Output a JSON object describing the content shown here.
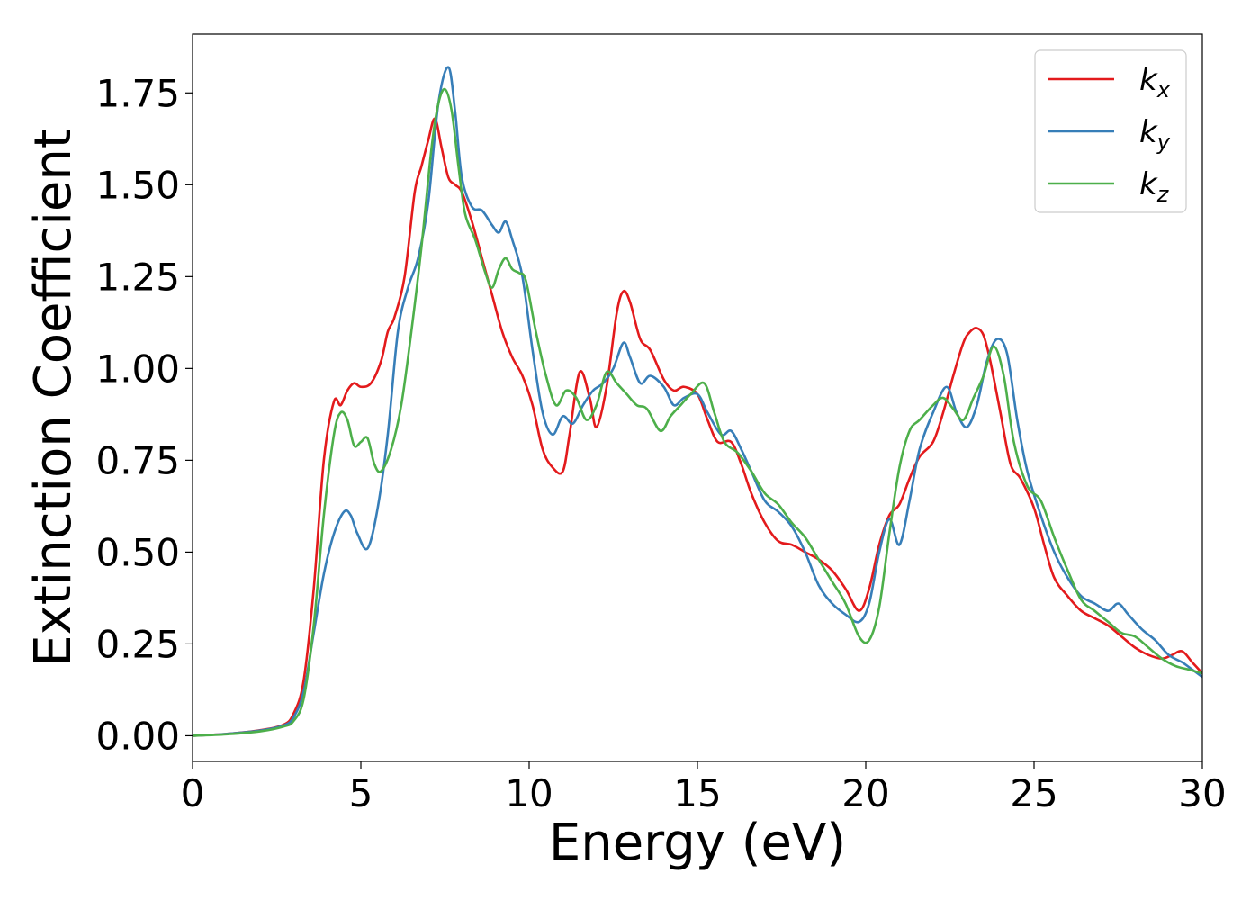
{
  "chart_data": {
    "type": "line",
    "title": "",
    "xlabel": "Energy (eV)",
    "ylabel": "Extinction Coefficient",
    "xlim": [
      0,
      30
    ],
    "ylim": [
      -0.07,
      1.91
    ],
    "xticks": [
      0,
      5,
      10,
      15,
      20,
      25,
      30
    ],
    "xtick_labels": [
      "0",
      "5",
      "10",
      "15",
      "20",
      "25",
      "30"
    ],
    "yticks": [
      0.0,
      0.25,
      0.5,
      0.75,
      1.0,
      1.25,
      1.5,
      1.75
    ],
    "ytick_labels": [
      "0.00",
      "0.25",
      "0.50",
      "0.75",
      "1.00",
      "1.25",
      "1.50",
      "1.75"
    ],
    "grid": false,
    "legend_position": "top-right",
    "series": [
      {
        "name": "k",
        "subscript": "x",
        "color": "#e31a1c",
        "x": [
          0,
          1,
          2,
          2.7,
          3.0,
          3.3,
          3.6,
          3.9,
          4.2,
          4.4,
          4.6,
          4.8,
          5.0,
          5.3,
          5.6,
          5.8,
          6.0,
          6.3,
          6.6,
          6.8,
          7.0,
          7.2,
          7.4,
          7.6,
          7.8,
          8.0,
          8.3,
          8.6,
          8.9,
          9.2,
          9.5,
          9.8,
          10.1,
          10.4,
          10.7,
          11.0,
          11.2,
          11.5,
          11.8,
          12.0,
          12.3,
          12.6,
          12.8,
          13.0,
          13.3,
          13.6,
          14.0,
          14.3,
          14.6,
          15.0,
          15.3,
          15.6,
          16.0,
          16.3,
          16.6,
          17.0,
          17.4,
          17.8,
          18.2,
          18.6,
          19.0,
          19.4,
          19.8,
          20.1,
          20.4,
          20.7,
          21.0,
          21.3,
          21.6,
          22.0,
          22.3,
          22.6,
          22.9,
          23.1,
          23.3,
          23.5,
          23.7,
          24.0,
          24.3,
          24.6,
          25.0,
          25.3,
          25.6,
          26.0,
          26.4,
          26.8,
          27.2,
          27.6,
          28.0,
          28.4,
          28.8,
          29.1,
          29.4,
          29.7,
          30.0
        ],
        "values": [
          0.0,
          0.005,
          0.015,
          0.03,
          0.06,
          0.15,
          0.4,
          0.75,
          0.91,
          0.9,
          0.94,
          0.96,
          0.95,
          0.96,
          1.02,
          1.1,
          1.14,
          1.25,
          1.48,
          1.55,
          1.62,
          1.68,
          1.6,
          1.52,
          1.5,
          1.48,
          1.4,
          1.3,
          1.2,
          1.1,
          1.03,
          0.98,
          0.9,
          0.78,
          0.73,
          0.72,
          0.82,
          0.99,
          0.92,
          0.84,
          0.95,
          1.15,
          1.21,
          1.18,
          1.08,
          1.05,
          0.97,
          0.94,
          0.95,
          0.93,
          0.86,
          0.8,
          0.8,
          0.74,
          0.66,
          0.58,
          0.53,
          0.52,
          0.5,
          0.48,
          0.45,
          0.4,
          0.34,
          0.4,
          0.52,
          0.6,
          0.63,
          0.7,
          0.76,
          0.8,
          0.88,
          0.98,
          1.07,
          1.1,
          1.11,
          1.09,
          1.02,
          0.88,
          0.74,
          0.7,
          0.62,
          0.52,
          0.43,
          0.38,
          0.34,
          0.32,
          0.3,
          0.27,
          0.24,
          0.22,
          0.21,
          0.22,
          0.23,
          0.2,
          0.17
        ]
      },
      {
        "name": "k",
        "subscript": "y",
        "color": "#377eb8",
        "x": [
          0,
          1,
          2,
          2.7,
          3.0,
          3.3,
          3.6,
          3.9,
          4.2,
          4.5,
          4.7,
          4.9,
          5.2,
          5.5,
          5.8,
          6.1,
          6.4,
          6.7,
          7.0,
          7.3,
          7.6,
          7.8,
          8.0,
          8.3,
          8.6,
          8.9,
          9.1,
          9.3,
          9.5,
          9.8,
          10.1,
          10.4,
          10.7,
          11.0,
          11.3,
          11.6,
          11.9,
          12.2,
          12.5,
          12.8,
          13.0,
          13.3,
          13.6,
          14.0,
          14.3,
          14.6,
          15.0,
          15.3,
          15.7,
          16.0,
          16.3,
          16.6,
          17.0,
          17.4,
          17.8,
          18.2,
          18.6,
          19.0,
          19.4,
          19.8,
          20.1,
          20.4,
          20.7,
          21.0,
          21.3,
          21.6,
          22.0,
          22.4,
          22.7,
          23.0,
          23.3,
          23.6,
          23.9,
          24.2,
          24.5,
          24.8,
          25.2,
          25.6,
          26.0,
          26.4,
          26.8,
          27.2,
          27.5,
          27.8,
          28.2,
          28.6,
          29.0,
          29.4,
          29.7,
          30.0
        ],
        "values": [
          0.0,
          0.005,
          0.014,
          0.028,
          0.05,
          0.12,
          0.28,
          0.44,
          0.55,
          0.61,
          0.6,
          0.55,
          0.51,
          0.62,
          0.82,
          1.1,
          1.22,
          1.3,
          1.45,
          1.72,
          1.82,
          1.7,
          1.52,
          1.44,
          1.43,
          1.39,
          1.37,
          1.4,
          1.35,
          1.25,
          1.05,
          0.88,
          0.82,
          0.87,
          0.85,
          0.9,
          0.94,
          0.96,
          1.0,
          1.07,
          1.03,
          0.96,
          0.98,
          0.95,
          0.9,
          0.92,
          0.93,
          0.88,
          0.82,
          0.83,
          0.78,
          0.72,
          0.64,
          0.61,
          0.57,
          0.5,
          0.41,
          0.36,
          0.33,
          0.31,
          0.36,
          0.5,
          0.59,
          0.52,
          0.64,
          0.78,
          0.88,
          0.95,
          0.88,
          0.84,
          0.9,
          1.02,
          1.08,
          1.04,
          0.86,
          0.72,
          0.6,
          0.5,
          0.43,
          0.38,
          0.36,
          0.34,
          0.36,
          0.33,
          0.29,
          0.26,
          0.22,
          0.2,
          0.18,
          0.16
        ]
      },
      {
        "name": "k",
        "subscript": "z",
        "color": "#4daf4a",
        "x": [
          0,
          1,
          2,
          2.7,
          3.0,
          3.3,
          3.6,
          3.9,
          4.2,
          4.4,
          4.6,
          4.8,
          5.0,
          5.2,
          5.4,
          5.6,
          5.9,
          6.2,
          6.5,
          6.8,
          7.1,
          7.3,
          7.5,
          7.7,
          7.9,
          8.1,
          8.4,
          8.7,
          8.9,
          9.1,
          9.3,
          9.5,
          9.7,
          9.9,
          10.2,
          10.5,
          10.8,
          11.1,
          11.4,
          11.7,
          12.0,
          12.3,
          12.6,
          12.9,
          13.2,
          13.5,
          13.9,
          14.2,
          14.5,
          14.8,
          15.2,
          15.5,
          15.8,
          16.2,
          16.6,
          17.0,
          17.4,
          17.8,
          18.2,
          18.6,
          19.0,
          19.4,
          19.8,
          20.1,
          20.4,
          20.7,
          21.0,
          21.3,
          21.6,
          22.0,
          22.3,
          22.6,
          22.9,
          23.2,
          23.5,
          23.8,
          24.1,
          24.4,
          24.8,
          25.2,
          25.6,
          26.0,
          26.4,
          26.8,
          27.2,
          27.6,
          28.0,
          28.4,
          28.8,
          29.2,
          29.6,
          30.0
        ],
        "values": [
          0.0,
          0.004,
          0.012,
          0.025,
          0.04,
          0.1,
          0.3,
          0.6,
          0.82,
          0.88,
          0.86,
          0.79,
          0.8,
          0.81,
          0.74,
          0.72,
          0.78,
          0.9,
          1.1,
          1.33,
          1.6,
          1.72,
          1.76,
          1.7,
          1.55,
          1.42,
          1.35,
          1.26,
          1.22,
          1.27,
          1.3,
          1.27,
          1.26,
          1.24,
          1.1,
          0.98,
          0.9,
          0.94,
          0.92,
          0.86,
          0.9,
          0.99,
          0.96,
          0.93,
          0.9,
          0.89,
          0.83,
          0.87,
          0.9,
          0.93,
          0.96,
          0.88,
          0.8,
          0.77,
          0.72,
          0.66,
          0.63,
          0.58,
          0.54,
          0.48,
          0.42,
          0.36,
          0.27,
          0.26,
          0.35,
          0.55,
          0.73,
          0.83,
          0.86,
          0.9,
          0.92,
          0.89,
          0.86,
          0.92,
          0.98,
          1.06,
          0.98,
          0.8,
          0.68,
          0.64,
          0.54,
          0.45,
          0.37,
          0.34,
          0.31,
          0.28,
          0.27,
          0.24,
          0.21,
          0.19,
          0.18,
          0.17
        ]
      }
    ]
  }
}
